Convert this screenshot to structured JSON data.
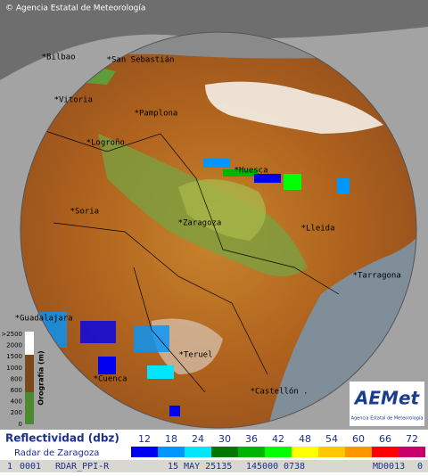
{
  "header": {
    "copyright": "© Agencia Estatal de Meteorología"
  },
  "cities": [
    {
      "label": "Bilbao"
    },
    {
      "label": "San Sebastián"
    },
    {
      "label": "Vitoria"
    },
    {
      "label": "Pamplona"
    },
    {
      "label": "Logroño"
    },
    {
      "label": "Huesca"
    },
    {
      "label": "Soria"
    },
    {
      "label": "Zaragoza"
    },
    {
      "label": "Lleida"
    },
    {
      "label": "Tarragona"
    },
    {
      "label": "Guadalajara"
    },
    {
      "label": "Teruel"
    },
    {
      "label": "Cuenca"
    },
    {
      "label": "Castellón ."
    }
  ],
  "orography": {
    "title": "Orografía (m)",
    "ticks": [
      ">2500",
      "2000",
      "1500",
      "1000",
      "800",
      "600",
      "400",
      "200",
      "0"
    ]
  },
  "logo": {
    "name": "AEMet",
    "subtitle": "Agencia Estatal de Meteorología"
  },
  "legend": {
    "title": "Reflectividad (dbz)",
    "radar": "Radar de Zaragoza",
    "levels": [
      {
        "value": 12,
        "color": "#0000f0"
      },
      {
        "value": 18,
        "color": "#0096ff"
      },
      {
        "value": 24,
        "color": "#00e6ff"
      },
      {
        "value": 30,
        "color": "#007800"
      },
      {
        "value": 36,
        "color": "#00b400"
      },
      {
        "value": 42,
        "color": "#00ff00"
      },
      {
        "value": 48,
        "color": "#ffff00"
      },
      {
        "value": 54,
        "color": "#ffc800"
      },
      {
        "value": 60,
        "color": "#ff9600"
      },
      {
        "value": 66,
        "color": "#ff0000"
      },
      {
        "value": 72,
        "color": "#c8006e"
      }
    ]
  },
  "status": [
    "1",
    "0001",
    "RDAR_PPI-R",
    "15 MAY 25135",
    "145000",
    "0738",
    "MD0013",
    "0"
  ]
}
